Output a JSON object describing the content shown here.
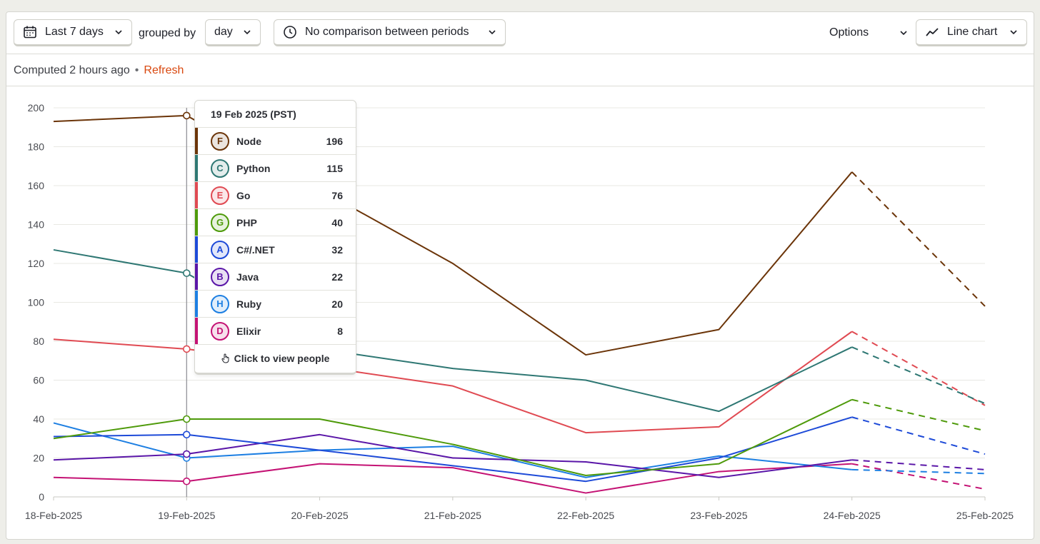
{
  "toolbar": {
    "date_range": "Last 7 days",
    "grouped_by_label": "grouped by",
    "interval": "day",
    "comparison": "No comparison between periods",
    "options_label": "Options",
    "chart_type_label": "Line chart"
  },
  "status": {
    "computed": "Computed 2 hours ago",
    "separator": "•",
    "refresh": "Refresh"
  },
  "tooltip": {
    "title": "19 Feb 2025 (PST)",
    "rows": [
      {
        "letter": "F",
        "name": "Node",
        "value": "196",
        "color": "#6b3408"
      },
      {
        "letter": "C",
        "name": "Python",
        "value": "115",
        "color": "#2e7773"
      },
      {
        "letter": "E",
        "name": "Go",
        "value": "76",
        "color": "#e04a52"
      },
      {
        "letter": "G",
        "name": "PHP",
        "value": "40",
        "color": "#4e9a0a"
      },
      {
        "letter": "A",
        "name": "C#/.NET",
        "value": "32",
        "color": "#1d4ad8"
      },
      {
        "letter": "B",
        "name": "Java",
        "value": "22",
        "color": "#5a16a8"
      },
      {
        "letter": "H",
        "name": "Ruby",
        "value": "20",
        "color": "#1d7fe2"
      },
      {
        "letter": "D",
        "name": "Elixir",
        "value": "8",
        "color": "#c41274"
      }
    ],
    "footer": "Click to view people"
  },
  "chart_data": {
    "type": "line",
    "x": [
      "18-Feb-2025",
      "19-Feb-2025",
      "20-Feb-2025",
      "21-Feb-2025",
      "22-Feb-2025",
      "23-Feb-2025",
      "24-Feb-2025",
      "25-Feb-2025"
    ],
    "ylim": [
      0,
      200
    ],
    "yticks": [
      0,
      20,
      40,
      60,
      80,
      100,
      120,
      140,
      160,
      180,
      200
    ],
    "grid": true,
    "dashed_from_index": 6,
    "highlight_index": 1,
    "series": [
      {
        "name": "Node",
        "color": "#6b3408",
        "values": [
          193,
          196,
          158,
          120,
          73,
          86,
          167,
          98
        ]
      },
      {
        "name": "Python",
        "color": "#2e7773",
        "values": [
          127,
          115,
          76,
          66,
          60,
          44,
          77,
          48
        ]
      },
      {
        "name": "Go",
        "color": "#e04a52",
        "values": [
          81,
          76,
          67,
          57,
          33,
          36,
          85,
          47
        ]
      },
      {
        "name": "PHP",
        "color": "#4e9a0a",
        "values": [
          30,
          40,
          40,
          27,
          11,
          17,
          50,
          34
        ]
      },
      {
        "name": "C#/.NET",
        "color": "#1d4ad8",
        "values": [
          31,
          32,
          24,
          16,
          8,
          20,
          41,
          22
        ]
      },
      {
        "name": "Java",
        "color": "#5a16a8",
        "values": [
          19,
          22,
          32,
          20,
          18,
          10,
          19,
          14
        ]
      },
      {
        "name": "Ruby",
        "color": "#1d7fe2",
        "values": [
          38,
          20,
          24,
          26,
          10,
          21,
          14,
          12
        ]
      },
      {
        "name": "Elixir",
        "color": "#c41274",
        "values": [
          10,
          8,
          17,
          15,
          2,
          13,
          17,
          4
        ]
      }
    ]
  }
}
